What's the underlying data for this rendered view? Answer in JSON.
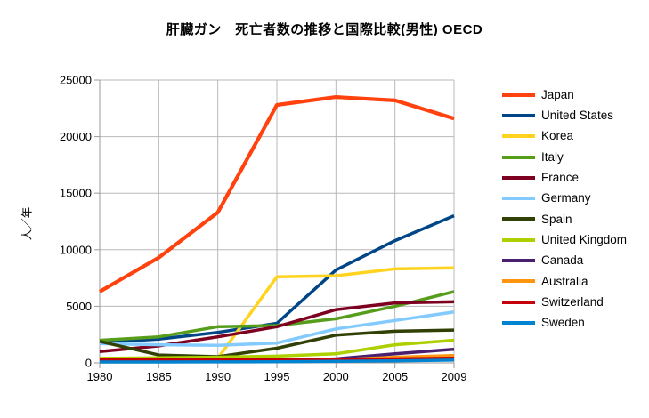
{
  "title": "肝臓ガン　死亡者数の推移と国際比較(男性) OECD",
  "chart_data": {
    "type": "line",
    "title": "肝臓ガン　死亡者数の推移と国際比較(男性) OECD",
    "xlabel": "",
    "ylabel": "人／年",
    "ylim": [
      0,
      25000
    ],
    "yticks": [
      0,
      5000,
      10000,
      15000,
      20000,
      25000
    ],
    "grid": true,
    "legend_position": "right",
    "categories": [
      "1980",
      "1985",
      "1990",
      "1995",
      "2000",
      "2005",
      "2009"
    ],
    "series": [
      {
        "name": "Japan",
        "color": "#FF420E",
        "values": [
          6300,
          9300,
          13300,
          22800,
          23500,
          23200,
          21600
        ]
      },
      {
        "name": "United States",
        "color": "#004586",
        "values": [
          1800,
          2100,
          2700,
          3500,
          8200,
          10800,
          13000
        ]
      },
      {
        "name": "Korea",
        "color": "#FFD320",
        "values": [
          300,
          350,
          400,
          7600,
          7700,
          8300,
          8400
        ]
      },
      {
        "name": "Italy",
        "color": "#579D1C",
        "values": [
          2000,
          2300,
          3200,
          3300,
          3900,
          5000,
          6300
        ]
      },
      {
        "name": "France",
        "color": "#7E0021",
        "values": [
          1000,
          1500,
          2300,
          3200,
          4700,
          5300,
          5400
        ]
      },
      {
        "name": "Germany",
        "color": "#83CAFF",
        "values": [
          1700,
          1600,
          1550,
          1750,
          3000,
          3750,
          4500
        ]
      },
      {
        "name": "Spain",
        "color": "#314004",
        "values": [
          1900,
          700,
          550,
          1300,
          2450,
          2800,
          2900
        ]
      },
      {
        "name": "United Kingdom",
        "color": "#AECF00",
        "values": [
          400,
          450,
          500,
          600,
          800,
          1600,
          2000
        ]
      },
      {
        "name": "Canada",
        "color": "#4B1F6F",
        "values": [
          100,
          110,
          130,
          180,
          350,
          800,
          1200
        ]
      },
      {
        "name": "Australia",
        "color": "#FF950E",
        "values": [
          90,
          100,
          120,
          150,
          250,
          500,
          650
        ]
      },
      {
        "name": "Switzerland",
        "color": "#C5000B",
        "values": [
          250,
          250,
          250,
          260,
          300,
          350,
          420
        ]
      },
      {
        "name": "Sweden",
        "color": "#0084D1",
        "values": [
          80,
          80,
          90,
          100,
          130,
          180,
          250
        ]
      }
    ],
    "style": {
      "gridline_color": "#b8b8b8",
      "axis_color": "#9a9a9a",
      "tick_label_color": "#000000",
      "background": "#ffffff"
    }
  }
}
